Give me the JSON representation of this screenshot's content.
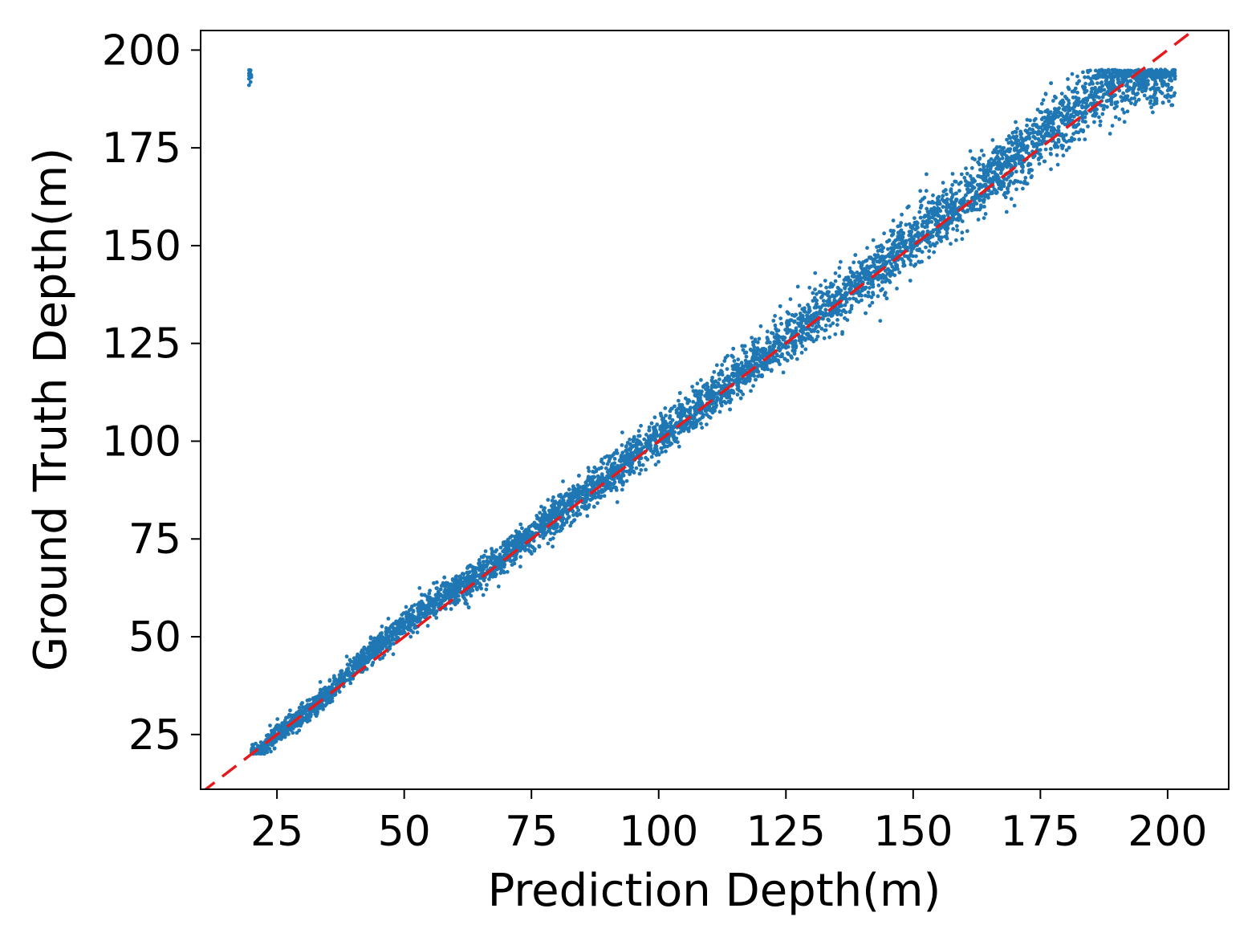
{
  "chart_data": {
    "type": "scatter",
    "title": "",
    "xlabel": "Prediction Depth(m)",
    "ylabel": "Ground Truth Depth(m)",
    "xlim": [
      10,
      212
    ],
    "ylim": [
      11,
      205
    ],
    "xticks": [
      "25",
      "50",
      "75",
      "100",
      "125",
      "150",
      "175",
      "200"
    ],
    "yticks": [
      "25",
      "50",
      "75",
      "100",
      "125",
      "150",
      "175",
      "200"
    ],
    "grid": false,
    "legend": "none",
    "series": [
      {
        "kind": "scatter",
        "color": "#1f77b4",
        "sample_points": [
          [
            20,
            20.5
          ],
          [
            22,
            21
          ],
          [
            25,
            25
          ],
          [
            30,
            30
          ],
          [
            35,
            35
          ],
          [
            40,
            42
          ],
          [
            45,
            48
          ],
          [
            50,
            53
          ],
          [
            55,
            58
          ],
          [
            60,
            62
          ],
          [
            65,
            66
          ],
          [
            70,
            71
          ],
          [
            75,
            76
          ],
          [
            80,
            81
          ],
          [
            85,
            86
          ],
          [
            90,
            91
          ],
          [
            95,
            96
          ],
          [
            100,
            101
          ],
          [
            105,
            106
          ],
          [
            110,
            111
          ],
          [
            115,
            116
          ],
          [
            120,
            121
          ],
          [
            125,
            126
          ],
          [
            130,
            131
          ],
          [
            135,
            136
          ],
          [
            140,
            141
          ],
          [
            145,
            146
          ],
          [
            150,
            152
          ],
          [
            155,
            157
          ],
          [
            160,
            162
          ],
          [
            165,
            167
          ],
          [
            170,
            172
          ],
          [
            175,
            178
          ],
          [
            180,
            183
          ],
          [
            185,
            188
          ],
          [
            190,
            192
          ],
          [
            195,
            194
          ],
          [
            200,
            194
          ]
        ]
      },
      {
        "kind": "reference-line",
        "style": "dashed",
        "color": "#e41a1c",
        "x": [
          10,
          212
        ],
        "y": [
          10,
          212
        ]
      }
    ]
  }
}
